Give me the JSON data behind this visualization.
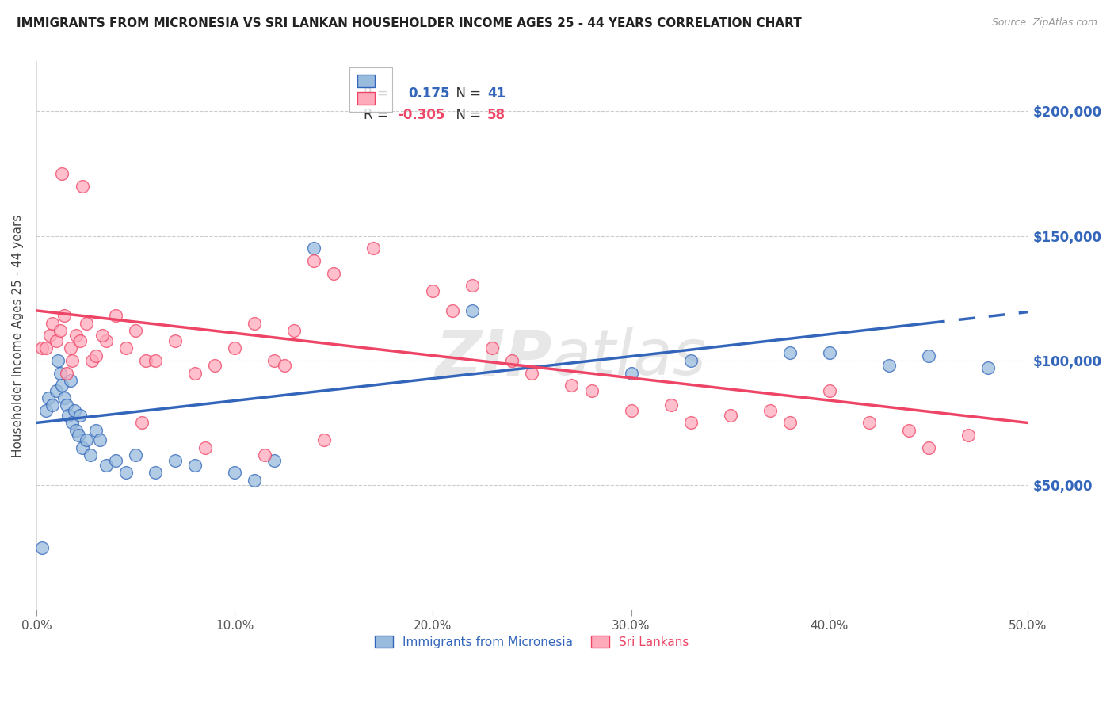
{
  "title": "IMMIGRANTS FROM MICRONESIA VS SRI LANKAN HOUSEHOLDER INCOME AGES 25 - 44 YEARS CORRELATION CHART",
  "source": "Source: ZipAtlas.com",
  "xlabel_ticks": [
    "0.0%",
    "10.0%",
    "20.0%",
    "30.0%",
    "40.0%",
    "50.0%"
  ],
  "xlabel_vals": [
    0,
    10,
    20,
    30,
    40,
    50
  ],
  "ylabel": "Householder Income Ages 25 - 44 years",
  "ylabel_ticks": [
    "$50,000",
    "$100,000",
    "$150,000",
    "$200,000"
  ],
  "ylabel_vals": [
    50000,
    100000,
    150000,
    200000
  ],
  "xlim": [
    0,
    50
  ],
  "ylim": [
    0,
    220000
  ],
  "blue_color": "#99BBDD",
  "pink_color": "#FFAABB",
  "blue_line_color": "#3366BB",
  "pink_line_color": "#EE4466",
  "watermark": "ZIPatlas",
  "blue_x": [
    0.3,
    0.5,
    0.6,
    0.8,
    1.0,
    1.1,
    1.2,
    1.3,
    1.4,
    1.5,
    1.6,
    1.7,
    1.8,
    1.9,
    2.0,
    2.1,
    2.2,
    2.3,
    2.5,
    2.7,
    3.0,
    3.2,
    3.5,
    4.0,
    4.5,
    5.0,
    6.0,
    7.0,
    8.0,
    10.0,
    11.0,
    12.0,
    14.0,
    22.0,
    30.0,
    33.0,
    38.0,
    40.0,
    43.0,
    45.0,
    48.0
  ],
  "blue_y": [
    25000,
    80000,
    85000,
    82000,
    88000,
    100000,
    95000,
    90000,
    85000,
    82000,
    78000,
    92000,
    75000,
    80000,
    72000,
    70000,
    78000,
    65000,
    68000,
    62000,
    72000,
    68000,
    58000,
    60000,
    55000,
    62000,
    55000,
    60000,
    58000,
    55000,
    52000,
    60000,
    145000,
    120000,
    95000,
    100000,
    103000,
    103000,
    98000,
    102000,
    97000
  ],
  "pink_x": [
    0.3,
    0.5,
    0.7,
    0.8,
    1.0,
    1.2,
    1.4,
    1.5,
    1.7,
    1.8,
    2.0,
    2.2,
    2.5,
    2.8,
    3.0,
    3.5,
    4.0,
    4.5,
    5.0,
    5.5,
    6.0,
    7.0,
    8.0,
    9.0,
    10.0,
    11.0,
    12.0,
    12.5,
    13.0,
    14.0,
    15.0,
    17.0,
    20.0,
    21.0,
    22.0,
    23.0,
    24.0,
    25.0,
    27.0,
    28.0,
    30.0,
    32.0,
    33.0,
    35.0,
    37.0,
    38.0,
    40.0,
    42.0,
    44.0,
    45.0,
    47.0,
    1.3,
    2.3,
    3.3,
    5.3,
    8.5,
    11.5,
    14.5
  ],
  "pink_y": [
    105000,
    105000,
    110000,
    115000,
    108000,
    112000,
    118000,
    95000,
    105000,
    100000,
    110000,
    108000,
    115000,
    100000,
    102000,
    108000,
    118000,
    105000,
    112000,
    100000,
    100000,
    108000,
    95000,
    98000,
    105000,
    115000,
    100000,
    98000,
    112000,
    140000,
    135000,
    145000,
    128000,
    120000,
    130000,
    105000,
    100000,
    95000,
    90000,
    88000,
    80000,
    82000,
    75000,
    78000,
    80000,
    75000,
    88000,
    75000,
    72000,
    65000,
    70000,
    175000,
    170000,
    110000,
    75000,
    65000,
    62000,
    68000
  ]
}
